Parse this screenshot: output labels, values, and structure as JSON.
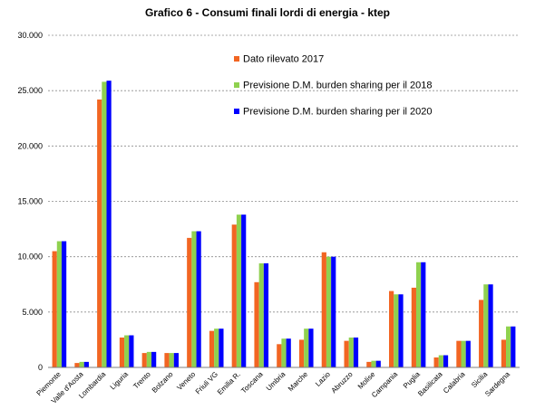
{
  "chart_data": {
    "type": "bar",
    "title": "Grafico 6 - Consumi finali lordi di energia - ktep",
    "xlabel": "",
    "ylabel": "",
    "ylim": [
      0,
      30000
    ],
    "yticks": [
      0,
      5000,
      10000,
      15000,
      20000,
      25000,
      30000
    ],
    "ytick_labels": [
      "0",
      "5.000",
      "10.000",
      "15.000",
      "20.000",
      "25.000",
      "30.000"
    ],
    "grid": true,
    "legend_position": "top-right",
    "categories": [
      "Piemonte",
      "Valle d'Aosta",
      "Lombardia",
      "Liguria",
      "Trento",
      "Bolzano",
      "Veneto",
      "Friuli VG",
      "Emilia R.",
      "Toscana",
      "Umbria",
      "Marche",
      "Lazio",
      "Abruzzo",
      "Molise",
      "Campania",
      "Puglia",
      "Basilicata",
      "Calabria",
      "Sicilia",
      "Sardegna"
    ],
    "series": [
      {
        "name": "Dato rilevato 2017",
        "color": "#f26522",
        "values": [
          10500,
          400,
          24200,
          2700,
          1300,
          1300,
          11700,
          3300,
          12900,
          7700,
          2100,
          2500,
          10400,
          2400,
          500,
          6900,
          7200,
          900,
          2400,
          6100,
          2500
        ]
      },
      {
        "name": "Previsione D.M. burden sharing per il 2018",
        "color": "#8fd14f",
        "values": [
          11400,
          500,
          25800,
          2900,
          1400,
          1300,
          12300,
          3500,
          13800,
          9400,
          2600,
          3500,
          10000,
          2700,
          600,
          6600,
          9500,
          1100,
          2400,
          7500,
          3700
        ]
      },
      {
        "name": "Previsione D.M. burden sharing per il 2020",
        "color": "#0000ff",
        "values": [
          11400,
          500,
          25900,
          2900,
          1400,
          1300,
          12300,
          3500,
          13800,
          9400,
          2600,
          3500,
          10000,
          2700,
          600,
          6600,
          9500,
          1100,
          2400,
          7500,
          3700
        ]
      }
    ]
  }
}
